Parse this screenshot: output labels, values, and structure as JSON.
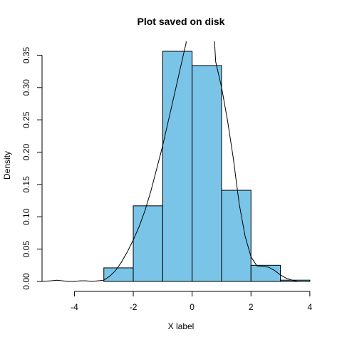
{
  "chart_data": {
    "type": "bar",
    "subtype": "histogram-with-density-curve",
    "title": "Plot saved on disk",
    "xlabel": "X label",
    "ylabel": "Density",
    "bins": [
      {
        "start": -5,
        "end": -4,
        "density": 0.0
      },
      {
        "start": -4,
        "end": -3,
        "density": 0.0
      },
      {
        "start": -3,
        "end": -2,
        "density": 0.021
      },
      {
        "start": -2,
        "end": -1,
        "density": 0.117
      },
      {
        "start": -1,
        "end": 0,
        "density": 0.356
      },
      {
        "start": 0,
        "end": 1,
        "density": 0.334
      },
      {
        "start": 1,
        "end": 2,
        "density": 0.141
      },
      {
        "start": 2,
        "end": 3,
        "density": 0.025
      },
      {
        "start": 3,
        "end": 4,
        "density": 0.002
      }
    ],
    "density_curve": {
      "x": [
        -5.1,
        -4.8,
        -4.6,
        -4.4,
        -4.2,
        -4.0,
        -3.8,
        -3.6,
        -3.4,
        -3.2,
        -3.0,
        -2.8,
        -2.6,
        -2.4,
        -2.2,
        -2.0,
        -1.8,
        -1.6,
        -1.4,
        -1.2,
        -1.0,
        -0.8,
        -0.6,
        -0.4,
        -0.2,
        -0.25,
        0.75,
        0.8,
        1.0,
        1.2,
        1.4,
        1.6,
        1.8,
        2.0,
        2.2,
        2.4,
        2.6,
        2.8,
        3.0,
        3.2,
        3.4,
        3.6,
        3.8,
        4.0
      ],
      "y": [
        0.0,
        0.001,
        0.002,
        0.001,
        0.0,
        0.0,
        0.001,
        0.001,
        0.0,
        0.001,
        0.002,
        0.008,
        0.017,
        0.03,
        0.046,
        0.064,
        0.085,
        0.11,
        0.14,
        0.175,
        0.21,
        0.25,
        0.29,
        0.33,
        0.37,
        0.38,
        0.38,
        0.34,
        0.3,
        0.25,
        0.19,
        0.12,
        0.07,
        0.038,
        0.024,
        0.023,
        0.022,
        0.017,
        0.01,
        0.005,
        0.002,
        0.0,
        0.0,
        0.0
      ]
    },
    "xlim": [
      -5.1,
      4.1
    ],
    "ylim": [
      0,
      0.356
    ],
    "x_ticks": [
      -4,
      -2,
      0,
      2,
      4
    ],
    "x_tick_labels": [
      "-4",
      "-2",
      "0",
      "2",
      "4"
    ],
    "y_ticks": [
      0.0,
      0.05,
      0.1,
      0.15,
      0.2,
      0.25,
      0.3,
      0.35
    ],
    "y_tick_labels": [
      "0.00",
      "0.05",
      "0.10",
      "0.15",
      "0.20",
      "0.25",
      "0.30",
      "0.35"
    ],
    "grid": false,
    "colors": {
      "bar_fill": "#7ac4e8",
      "bar_stroke": "#000000",
      "curve": "#000000",
      "axis": "#000000"
    }
  }
}
